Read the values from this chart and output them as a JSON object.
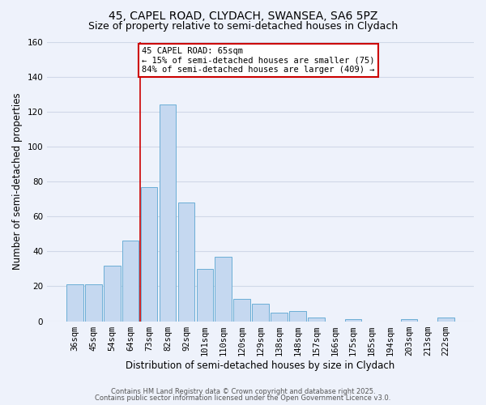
{
  "title_line1": "45, CAPEL ROAD, CLYDACH, SWANSEA, SA6 5PZ",
  "title_line2": "Size of property relative to semi-detached houses in Clydach",
  "xlabel": "Distribution of semi-detached houses by size in Clydach",
  "ylabel": "Number of semi-detached properties",
  "bar_labels": [
    "36sqm",
    "45sqm",
    "54sqm",
    "64sqm",
    "73sqm",
    "82sqm",
    "92sqm",
    "101sqm",
    "110sqm",
    "120sqm",
    "129sqm",
    "138sqm",
    "148sqm",
    "157sqm",
    "166sqm",
    "175sqm",
    "185sqm",
    "194sqm",
    "203sqm",
    "213sqm",
    "222sqm"
  ],
  "bar_values": [
    21,
    21,
    32,
    46,
    77,
    124,
    68,
    30,
    37,
    13,
    10,
    5,
    6,
    2,
    0,
    1,
    0,
    0,
    1,
    0,
    2
  ],
  "bar_color": "#c5d8f0",
  "bar_edge_color": "#6baed6",
  "vline_x": 3.0,
  "vline_color": "#cc0000",
  "annotation_title": "45 CAPEL ROAD: 65sqm",
  "annotation_line1": "← 15% of semi-detached houses are smaller (75)",
  "annotation_line2": "84% of semi-detached houses are larger (409) →",
  "annotation_box_color": "#ffffff",
  "annotation_box_edge": "#cc0000",
  "ylim": [
    0,
    160
  ],
  "yticks": [
    0,
    20,
    40,
    60,
    80,
    100,
    120,
    140,
    160
  ],
  "background_color": "#eef2fb",
  "footer_line1": "Contains HM Land Registry data © Crown copyright and database right 2025.",
  "footer_line2": "Contains public sector information licensed under the Open Government Licence v3.0.",
  "title_fontsize": 10,
  "subtitle_fontsize": 9,
  "axis_label_fontsize": 8.5,
  "tick_fontsize": 7.5,
  "annotation_fontsize": 7.5,
  "footer_fontsize": 6.0
}
